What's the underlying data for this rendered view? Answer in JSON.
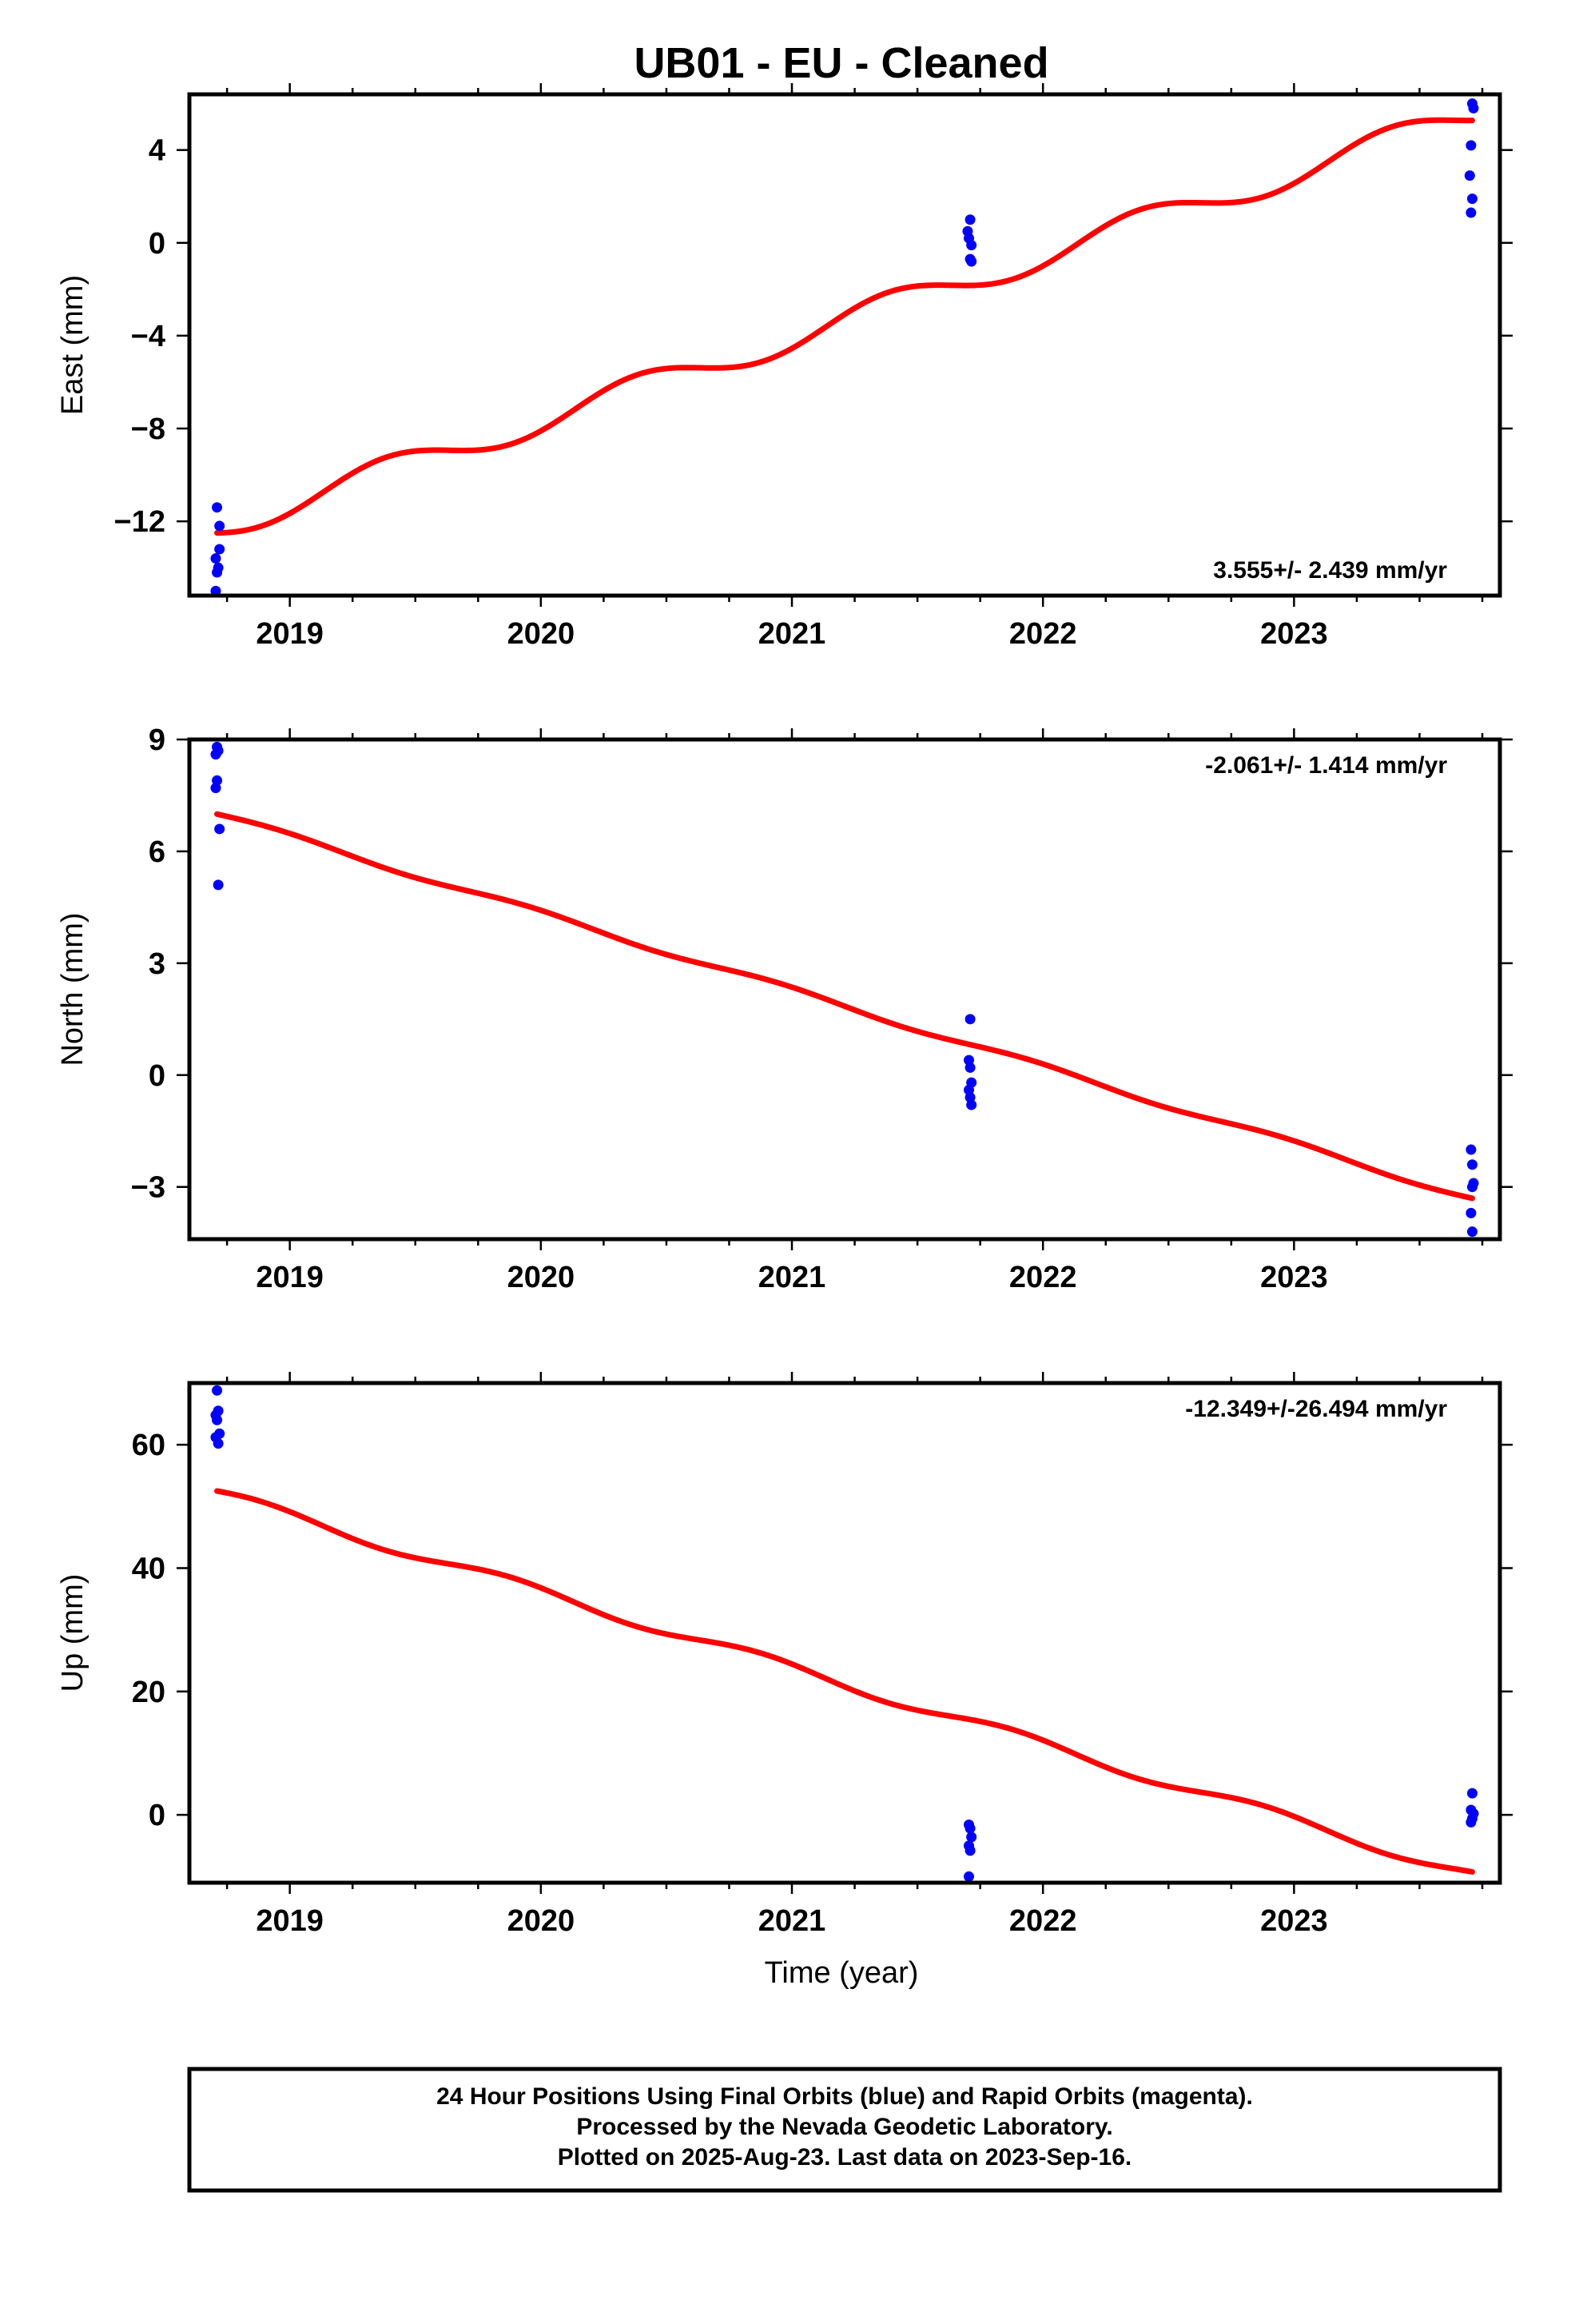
{
  "title": "UB01  - EU - Cleaned",
  "xlabel": "Time (year)",
  "footer": [
    "24 Hour Positions Using Final Orbits (blue) and Rapid Orbits (magenta).",
    "Processed by the Nevada Geodetic Laboratory.",
    "Plotted on 2025-Aug-23. Last data on 2023-Sep-16."
  ],
  "colors": {
    "points": "#0000ff",
    "fit": "#ff0000",
    "frame": "#000000"
  },
  "chart_data": [
    {
      "type": "scatter",
      "component": "East",
      "ylabel": "East (mm)",
      "rate_label": "3.555+/- 2.439 mm/yr",
      "rate_position": "bottom-right",
      "xlim": [
        2018.6,
        2023.82
      ],
      "ylim": [
        -15.2,
        6.4
      ],
      "xticks": [
        2019,
        2020,
        2021,
        2022,
        2023
      ],
      "yticks": [
        4,
        0,
        -4,
        -8,
        -12
      ],
      "ytick_labels": [
        "4",
        "0",
        "−4",
        "−8",
        "−12"
      ],
      "points": [
        [
          2018.71,
          -11.4
        ],
        [
          2018.72,
          -12.2
        ],
        [
          2018.72,
          -13.2
        ],
        [
          2018.705,
          -13.6
        ],
        [
          2018.715,
          -14.0
        ],
        [
          2018.71,
          -14.2
        ],
        [
          2018.705,
          -15.0
        ],
        [
          2021.71,
          1.0
        ],
        [
          2021.7,
          0.5
        ],
        [
          2021.705,
          0.2
        ],
        [
          2021.715,
          -0.1
        ],
        [
          2021.71,
          -0.7
        ],
        [
          2021.715,
          -0.8
        ],
        [
          2023.71,
          6.0
        ],
        [
          2023.715,
          5.8
        ],
        [
          2023.705,
          4.2
        ],
        [
          2023.7,
          2.9
        ],
        [
          2023.71,
          1.9
        ],
        [
          2023.705,
          1.3
        ]
      ],
      "fit": {
        "x_start": 2018.71,
        "x_end": 2023.71,
        "y_start": -12.5,
        "slope": 3.555,
        "seasonal_amplitude": 0.6,
        "seasonal_phase": 3.6
      }
    },
    {
      "type": "scatter",
      "component": "North",
      "ylabel": "North (mm)",
      "rate_label": "-2.061+/- 1.414 mm/yr",
      "rate_position": "top-right",
      "xlim": [
        2018.6,
        2023.82
      ],
      "ylim": [
        -4.4,
        9.0
      ],
      "xticks": [
        2019,
        2020,
        2021,
        2022,
        2023
      ],
      "yticks": [
        9,
        6,
        3,
        0,
        -3
      ],
      "ytick_labels": [
        "9",
        "6",
        "3",
        "0",
        "−3"
      ],
      "points": [
        [
          2018.71,
          8.8
        ],
        [
          2018.715,
          8.7
        ],
        [
          2018.705,
          8.6
        ],
        [
          2018.71,
          7.9
        ],
        [
          2018.705,
          7.7
        ],
        [
          2018.72,
          6.6
        ],
        [
          2018.715,
          5.1
        ],
        [
          2021.71,
          1.5
        ],
        [
          2021.705,
          0.4
        ],
        [
          2021.71,
          0.2
        ],
        [
          2021.715,
          -0.2
        ],
        [
          2021.705,
          -0.4
        ],
        [
          2021.71,
          -0.6
        ],
        [
          2021.715,
          -0.8
        ],
        [
          2023.705,
          -2.0
        ],
        [
          2023.71,
          -2.4
        ],
        [
          2023.715,
          -2.9
        ],
        [
          2023.71,
          -3.0
        ],
        [
          2023.705,
          -3.7
        ],
        [
          2023.71,
          -4.2
        ]
      ],
      "fit": {
        "x_start": 2018.71,
        "x_end": 2023.71,
        "y_start": 7.0,
        "slope": -2.061,
        "seasonal_amplitude": 0.08,
        "seasonal_phase": 0.0
      }
    },
    {
      "type": "scatter",
      "component": "Up",
      "ylabel": "Up (mm)",
      "rate_label": "-12.349+/-26.494 mm/yr",
      "rate_position": "top-right",
      "xlim": [
        2018.6,
        2023.82
      ],
      "ylim": [
        -11.0,
        70.0
      ],
      "xticks": [
        2019,
        2020,
        2021,
        2022,
        2023
      ],
      "yticks": [
        60,
        40,
        20,
        0
      ],
      "ytick_labels": [
        "60",
        "40",
        "20",
        "0"
      ],
      "points": [
        [
          2018.71,
          68.8
        ],
        [
          2018.715,
          65.5
        ],
        [
          2018.705,
          64.8
        ],
        [
          2018.71,
          64.0
        ],
        [
          2018.72,
          61.8
        ],
        [
          2018.705,
          61.2
        ],
        [
          2018.715,
          60.2
        ],
        [
          2021.705,
          -1.6
        ],
        [
          2021.71,
          -2.2
        ],
        [
          2021.715,
          -3.6
        ],
        [
          2021.705,
          -5.0
        ],
        [
          2021.71,
          -5.8
        ],
        [
          2021.705,
          -10.0
        ],
        [
          2023.71,
          3.5
        ],
        [
          2023.705,
          0.8
        ],
        [
          2023.715,
          0.2
        ],
        [
          2023.71,
          -0.6
        ],
        [
          2023.705,
          -1.2
        ]
      ],
      "fit": {
        "x_start": 2018.71,
        "x_end": 2023.71,
        "y_start": 52.5,
        "slope": -12.349,
        "seasonal_amplitude": 0.9,
        "seasonal_phase": 0.5
      }
    }
  ]
}
